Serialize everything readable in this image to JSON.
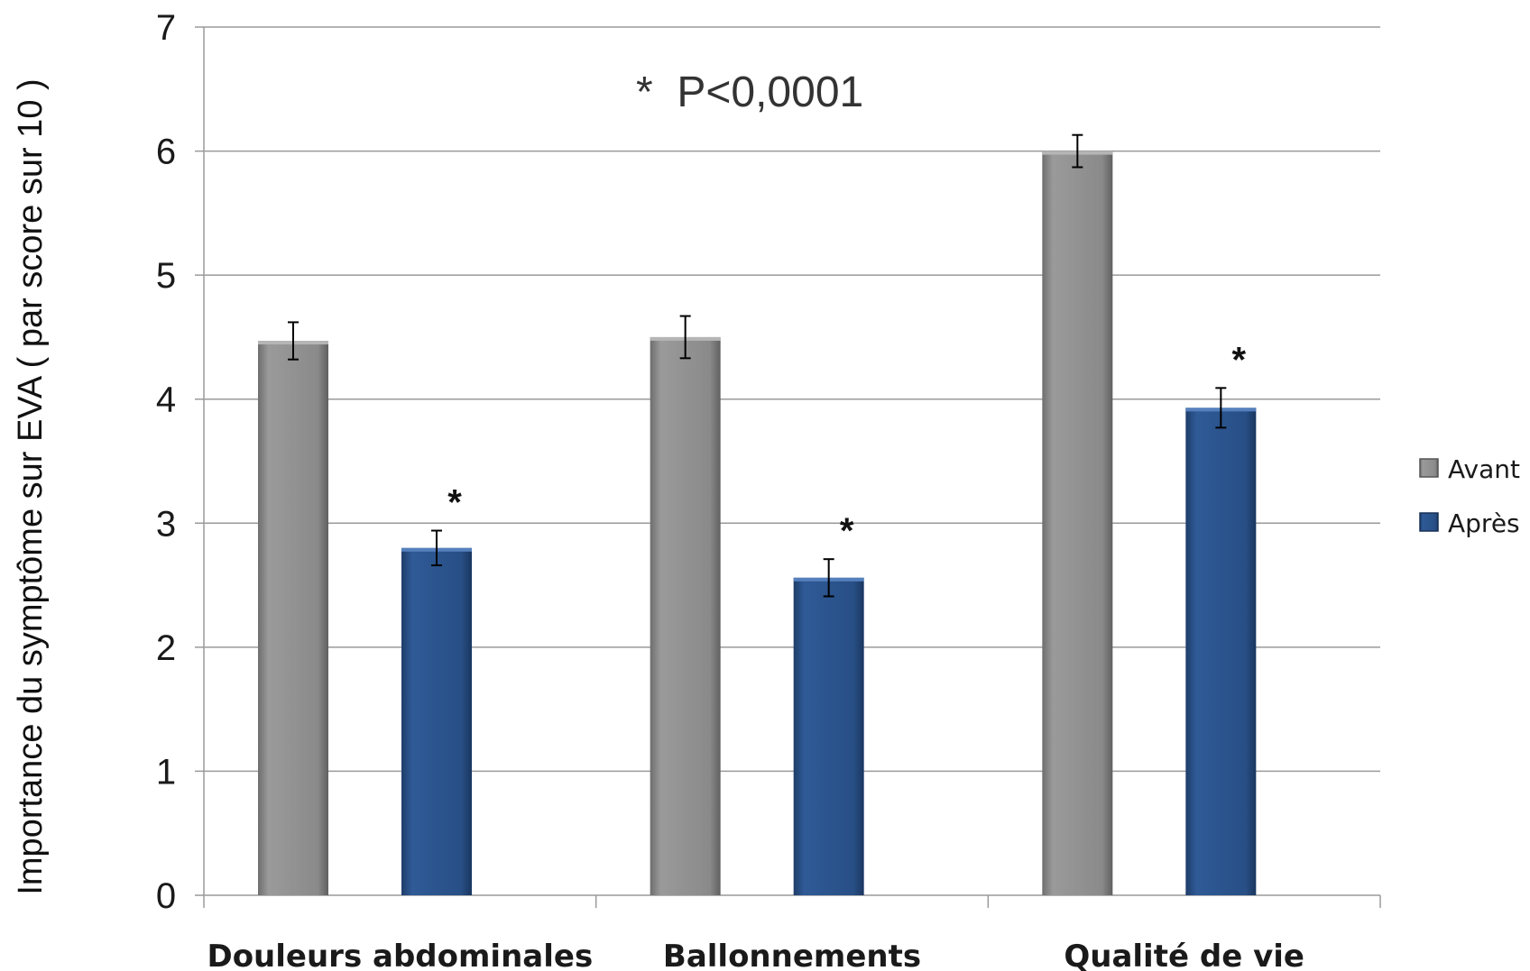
{
  "chart_data": {
    "type": "bar",
    "title": "",
    "ylabel": "Importance du symptôme sur EVA ( par score sur 10 )",
    "xlabel": "",
    "ylim": [
      0,
      7
    ],
    "yticks": [
      0,
      1,
      2,
      3,
      4,
      5,
      6,
      7
    ],
    "categories": [
      "Douleurs abdominales",
      "Ballonnements",
      "Qualité de vie"
    ],
    "series": [
      {
        "name": "Avant",
        "color": "#8c8c8c",
        "values": [
          4.47,
          4.5,
          6.0
        ],
        "errors": [
          0.15,
          0.17,
          0.13
        ]
      },
      {
        "name": "Après",
        "color": "#2a5088",
        "values": [
          2.8,
          2.56,
          3.93
        ],
        "errors": [
          0.14,
          0.15,
          0.16
        ]
      }
    ],
    "significance_marker": "*",
    "annotation": "*  P<0,0001",
    "grid": true,
    "legend_position": "right"
  }
}
